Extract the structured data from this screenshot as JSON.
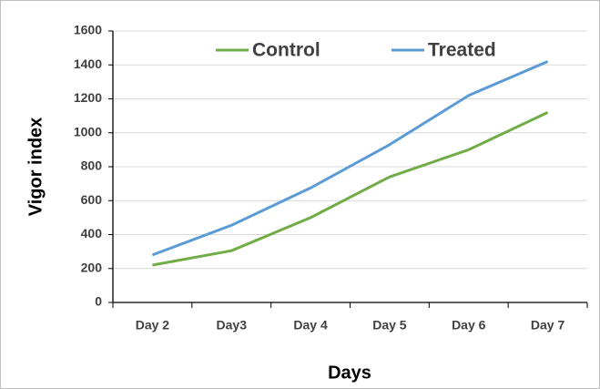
{
  "chart_data": {
    "type": "line",
    "x_label": "Days",
    "y_label": "Vigor index",
    "categories": [
      "Day 2",
      "Day3",
      "Day 4",
      "Day 5",
      "Day 6",
      "Day 7"
    ],
    "series": [
      {
        "name": "Control",
        "color": "#70ad47",
        "values": [
          220,
          305,
          500,
          740,
          900,
          1120
        ]
      },
      {
        "name": "Treated",
        "color": "#5b9bd5",
        "values": [
          280,
          455,
          675,
          930,
          1220,
          1420
        ]
      }
    ],
    "ylim": [
      0,
      1600
    ],
    "yticks": [
      0,
      200,
      400,
      600,
      800,
      1000,
      1200,
      1400,
      1600
    ],
    "grid": true,
    "legend": "top"
  }
}
